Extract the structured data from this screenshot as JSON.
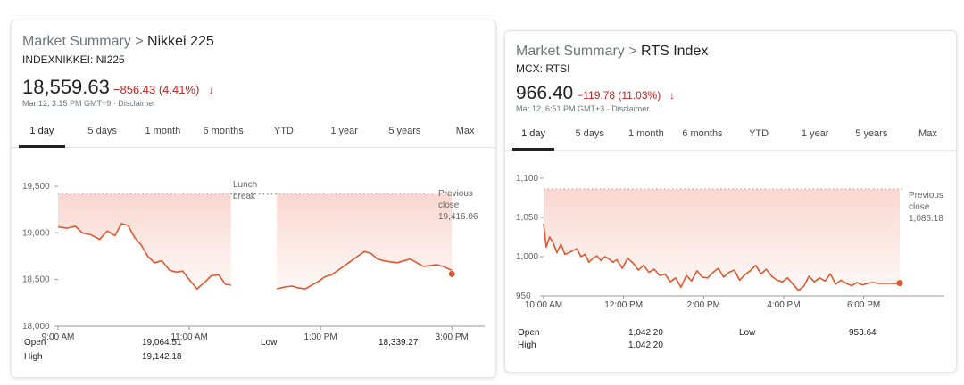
{
  "cards": [
    {
      "crumb_prefix": "Market Summary >",
      "name": "Nikkei 225",
      "ticker": "INDEXNIKKEI: NI225",
      "price": "18,559.63",
      "change": "−856.43 (4.41%)",
      "arrow": "↓",
      "meta": "Mar 12, 3:15 PM GMT+9 · Disclaimer",
      "tabs": [
        "1 day",
        "5 days",
        "1 month",
        "6 months",
        "YTD",
        "1 year",
        "5 years",
        "Max"
      ],
      "stats": [
        {
          "label": "Open",
          "value": "19,064.51"
        },
        {
          "label": "High",
          "value": "19,142.18"
        },
        {
          "label": "Low",
          "value": "18,339.27"
        }
      ]
    },
    {
      "crumb_prefix": "Market Summary >",
      "name": "RTS Index",
      "ticker": "MCX: RTSI",
      "price": "966.40",
      "change": "−119.78 (11.03%)",
      "arrow": "↓",
      "meta": "Mar 12, 6:51 PM GMT+3 · Disclaimer",
      "tabs": [
        "1 day",
        "5 days",
        "1 month",
        "6 months",
        "YTD",
        "1 year",
        "5 years",
        "Max"
      ],
      "stats": [
        {
          "label": "Open",
          "value": "1,042.20"
        },
        {
          "label": "High",
          "value": "1,042.20"
        },
        {
          "label": "Low",
          "value": "953.64"
        }
      ]
    }
  ],
  "colors": {
    "line": "#e2572e",
    "fill": "#f9d3cb",
    "down": "#c5221f",
    "grid": "#cccccc"
  },
  "chart_data": [
    {
      "type": "line",
      "title": "Nikkei 225",
      "x_ticks": [
        "9:00 AM",
        "11:00 AM",
        "1:00 PM",
        "3:00 PM"
      ],
      "x_tick_values": [
        0,
        120,
        240,
        360
      ],
      "y_ticks": [
        "18,000",
        "18,500",
        "19,000",
        "19,500"
      ],
      "y_tick_values": [
        18000,
        18500,
        19000,
        19500
      ],
      "ylim": [
        18000,
        19500
      ],
      "xlim": [
        0,
        390
      ],
      "previous_close": 19416.06,
      "previous_close_label": [
        "Previous",
        "close",
        "19,416.06"
      ],
      "annotation": [
        "Lunch",
        "break"
      ],
      "segments": [
        {
          "x": [
            0,
            8,
            16,
            22,
            30,
            38,
            45,
            52,
            58,
            64,
            70,
            76,
            82,
            88,
            95,
            102,
            108,
            114,
            120,
            127,
            134,
            140,
            147,
            153,
            158
          ],
          "y": [
            19064,
            19050,
            19070,
            19000,
            18980,
            18930,
            19020,
            18970,
            19100,
            19080,
            18950,
            18870,
            18750,
            18680,
            18700,
            18600,
            18580,
            18590,
            18500,
            18400,
            18470,
            18540,
            18550,
            18450,
            18440
          ]
        },
        {
          "x": [
            200,
            207,
            214,
            220,
            226,
            232,
            238,
            244,
            250,
            256,
            262,
            268,
            274,
            280,
            286,
            292,
            298,
            304,
            310,
            316,
            322,
            328,
            334,
            340,
            346,
            352,
            360
          ],
          "y": [
            18400,
            18420,
            18430,
            18410,
            18400,
            18440,
            18480,
            18530,
            18550,
            18600,
            18650,
            18700,
            18750,
            18800,
            18780,
            18720,
            18700,
            18690,
            18680,
            18700,
            18720,
            18680,
            18640,
            18650,
            18660,
            18640,
            18600
          ]
        }
      ],
      "last_point": {
        "x": 360,
        "y": 18560
      }
    },
    {
      "type": "line",
      "title": "RTS Index",
      "x_ticks": [
        "10:00 AM",
        "12:00 PM",
        "2:00 PM",
        "4:00 PM",
        "6:00 PM"
      ],
      "x_tick_values": [
        0,
        120,
        240,
        360,
        480
      ],
      "y_ticks": [
        "950",
        "1,000",
        "1,050",
        "1,100"
      ],
      "y_tick_values": [
        950,
        1000,
        1050,
        1100
      ],
      "ylim": [
        950,
        1100
      ],
      "xlim": [
        0,
        601
      ],
      "previous_close": 1086.18,
      "previous_close_label": [
        "Previous",
        "close",
        "1,086.18"
      ],
      "segments": [
        {
          "x": [
            0,
            4,
            9,
            14,
            20,
            26,
            32,
            38,
            44,
            50,
            56,
            62,
            68,
            74,
            80,
            86,
            92,
            98,
            104,
            110,
            118,
            126,
            134,
            142,
            150,
            158,
            166,
            174,
            182,
            190,
            198,
            206,
            214,
            222,
            230,
            238,
            246,
            254,
            262,
            270,
            278,
            286,
            294,
            302,
            310,
            318,
            326,
            334,
            342,
            350,
            358,
            366,
            374,
            382,
            390,
            398,
            406,
            414,
            422,
            430,
            438,
            446,
            454,
            462,
            470,
            478,
            486,
            494,
            502,
            510,
            518,
            526,
            534
          ],
          "y": [
            1042,
            1012,
            1025,
            1018,
            1005,
            1016,
            1003,
            1005,
            1008,
            1010,
            1000,
            1003,
            993,
            998,
            1001,
            995,
            1000,
            997,
            993,
            996,
            985,
            998,
            992,
            983,
            989,
            980,
            984,
            976,
            978,
            968,
            973,
            961,
            976,
            969,
            982,
            974,
            973,
            980,
            985,
            974,
            980,
            983,
            970,
            977,
            982,
            989,
            978,
            984,
            975,
            970,
            968,
            973,
            965,
            957,
            962,
            975,
            968,
            973,
            969,
            978,
            965,
            970,
            966,
            963,
            967,
            964,
            966,
            967,
            966,
            966,
            966,
            966,
            966
          ]
        }
      ],
      "last_point": {
        "x": 534,
        "y": 966.4
      }
    }
  ]
}
